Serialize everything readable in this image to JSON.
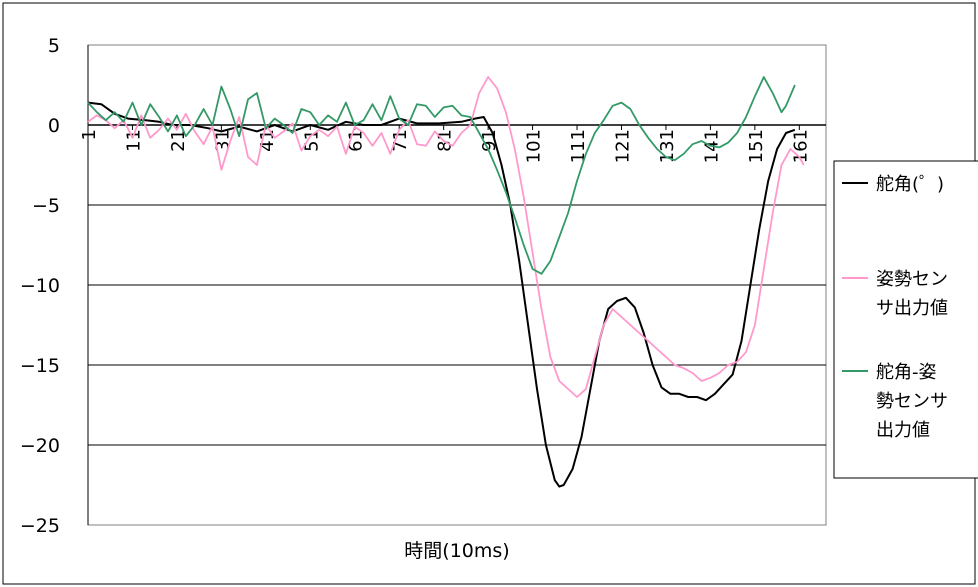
{
  "chart_data": {
    "type": "line",
    "title": "",
    "xlabel": "時間(10ms)",
    "ylabel": "",
    "ylim": [
      -25,
      5
    ],
    "yticks": [
      5,
      0,
      -5,
      -10,
      -15,
      -20,
      -25
    ],
    "ytick_labels": [
      "5",
      "0",
      "−5",
      "−10",
      "−15",
      "−20",
      "−25"
    ],
    "xlim": [
      1,
      167
    ],
    "xticks": [
      1,
      11,
      21,
      31,
      41,
      51,
      61,
      71,
      81,
      91,
      101,
      111,
      121,
      131,
      141,
      151,
      161
    ],
    "xtick_labels": [
      "1",
      "11",
      "21",
      "31",
      "41",
      "51",
      "61",
      "71",
      "81",
      "91",
      "101",
      "111",
      "121",
      "131",
      "141",
      "151",
      "161"
    ],
    "grid": "horizontal",
    "legend_position": "right",
    "series": [
      {
        "name": "舵角(゜)",
        "legend_lines": [
          "舵角(゜)"
        ],
        "color": "#000000",
        "points": [
          [
            1,
            1.4
          ],
          [
            4,
            1.3
          ],
          [
            7,
            0.7
          ],
          [
            10,
            0.4
          ],
          [
            14,
            0.3
          ],
          [
            17,
            0.2
          ],
          [
            20,
            0.0
          ],
          [
            24,
            0.0
          ],
          [
            28,
            -0.2
          ],
          [
            31,
            -0.4
          ],
          [
            35,
            -0.1
          ],
          [
            39,
            -0.4
          ],
          [
            43,
            0.0
          ],
          [
            47,
            -0.4
          ],
          [
            51,
            0.0
          ],
          [
            55,
            -0.3
          ],
          [
            59,
            0.2
          ],
          [
            63,
            0.0
          ],
          [
            67,
            0.0
          ],
          [
            71,
            0.4
          ],
          [
            75,
            0.1
          ],
          [
            80,
            0.1
          ],
          [
            85,
            0.2
          ],
          [
            88,
            0.4
          ],
          [
            90,
            0.5
          ],
          [
            92,
            -0.5
          ],
          [
            94,
            -2.5
          ],
          [
            96,
            -5.0
          ],
          [
            98,
            -8.5
          ],
          [
            100,
            -12.5
          ],
          [
            102,
            -16.5
          ],
          [
            104,
            -20.0
          ],
          [
            106,
            -22.2
          ],
          [
            107,
            -22.6
          ],
          [
            108,
            -22.5
          ],
          [
            110,
            -21.5
          ],
          [
            112,
            -19.5
          ],
          [
            114,
            -16.5
          ],
          [
            116,
            -13.5
          ],
          [
            118,
            -11.5
          ],
          [
            120,
            -11.0
          ],
          [
            122,
            -10.8
          ],
          [
            124,
            -11.4
          ],
          [
            126,
            -13.0
          ],
          [
            128,
            -15.0
          ],
          [
            130,
            -16.4
          ],
          [
            132,
            -16.8
          ],
          [
            134,
            -16.8
          ],
          [
            136,
            -17.0
          ],
          [
            138,
            -17.0
          ],
          [
            140,
            -17.2
          ],
          [
            142,
            -16.8
          ],
          [
            144,
            -16.2
          ],
          [
            146,
            -15.6
          ],
          [
            148,
            -13.5
          ],
          [
            150,
            -10.0
          ],
          [
            152,
            -6.5
          ],
          [
            154,
            -3.5
          ],
          [
            156,
            -1.5
          ],
          [
            158,
            -0.5
          ],
          [
            160,
            -0.3
          ]
        ]
      },
      {
        "name": "姿勢センサ出力値",
        "legend_lines": [
          "姿勢セン",
          "サ出力値"
        ],
        "color": "#ff99cc",
        "points": [
          [
            1,
            0.2
          ],
          [
            3,
            0.6
          ],
          [
            5,
            0.3
          ],
          [
            7,
            -0.2
          ],
          [
            9,
            0.3
          ],
          [
            11,
            -0.8
          ],
          [
            13,
            0.6
          ],
          [
            15,
            -0.8
          ],
          [
            17,
            -0.3
          ],
          [
            19,
            0.4
          ],
          [
            21,
            -0.3
          ],
          [
            23,
            0.7
          ],
          [
            25,
            -0.4
          ],
          [
            27,
            -1.2
          ],
          [
            29,
            -0.1
          ],
          [
            31,
            -2.8
          ],
          [
            33,
            -1.0
          ],
          [
            35,
            0.5
          ],
          [
            37,
            -2.0
          ],
          [
            39,
            -2.5
          ],
          [
            41,
            0.0
          ],
          [
            43,
            -0.8
          ],
          [
            45,
            -0.4
          ],
          [
            47,
            0.1
          ],
          [
            49,
            -1.6
          ],
          [
            51,
            -0.7
          ],
          [
            53,
            -0.3
          ],
          [
            55,
            -0.7
          ],
          [
            57,
            -0.1
          ],
          [
            59,
            -1.8
          ],
          [
            61,
            -0.1
          ],
          [
            63,
            -0.5
          ],
          [
            65,
            -1.3
          ],
          [
            67,
            -0.5
          ],
          [
            69,
            -1.8
          ],
          [
            71,
            -0.3
          ],
          [
            73,
            0.3
          ],
          [
            75,
            -1.2
          ],
          [
            77,
            -1.3
          ],
          [
            79,
            -0.4
          ],
          [
            81,
            -1.0
          ],
          [
            83,
            -1.3
          ],
          [
            85,
            -0.5
          ],
          [
            87,
            0.0
          ],
          [
            89,
            2.0
          ],
          [
            91,
            3.0
          ],
          [
            93,
            2.3
          ],
          [
            95,
            0.8
          ],
          [
            97,
            -1.5
          ],
          [
            99,
            -4.5
          ],
          [
            101,
            -8.0
          ],
          [
            103,
            -11.5
          ],
          [
            105,
            -14.5
          ],
          [
            107,
            -16.0
          ],
          [
            109,
            -16.5
          ],
          [
            111,
            -17.0
          ],
          [
            113,
            -16.5
          ],
          [
            115,
            -14.5
          ],
          [
            117,
            -12.5
          ],
          [
            119,
            -11.5
          ],
          [
            121,
            -12.0
          ],
          [
            123,
            -12.5
          ],
          [
            125,
            -13.0
          ],
          [
            127,
            -13.5
          ],
          [
            129,
            -14.0
          ],
          [
            131,
            -14.5
          ],
          [
            133,
            -15.0
          ],
          [
            135,
            -15.2
          ],
          [
            137,
            -15.5
          ],
          [
            139,
            -16.0
          ],
          [
            141,
            -15.8
          ],
          [
            143,
            -15.5
          ],
          [
            145,
            -15.0
          ],
          [
            147,
            -14.8
          ],
          [
            149,
            -14.2
          ],
          [
            151,
            -12.5
          ],
          [
            153,
            -9.0
          ],
          [
            155,
            -5.5
          ],
          [
            157,
            -2.5
          ],
          [
            159,
            -1.5
          ],
          [
            161,
            -2.0
          ],
          [
            162,
            -2.5
          ]
        ]
      },
      {
        "name": "舵角-姿勢センサ出力値",
        "legend_lines": [
          "舵角-姿",
          "勢センサ",
          "出力値"
        ],
        "color": "#339966",
        "points": [
          [
            1,
            1.4
          ],
          [
            3,
            0.8
          ],
          [
            5,
            0.3
          ],
          [
            7,
            0.8
          ],
          [
            9,
            0.2
          ],
          [
            11,
            1.4
          ],
          [
            13,
            0.0
          ],
          [
            15,
            1.3
          ],
          [
            17,
            0.5
          ],
          [
            19,
            -0.4
          ],
          [
            21,
            0.6
          ],
          [
            23,
            -0.7
          ],
          [
            25,
            0.0
          ],
          [
            27,
            1.0
          ],
          [
            29,
            0.0
          ],
          [
            31,
            2.4
          ],
          [
            33,
            1.0
          ],
          [
            35,
            -0.7
          ],
          [
            37,
            1.6
          ],
          [
            39,
            2.0
          ],
          [
            41,
            -0.2
          ],
          [
            43,
            0.4
          ],
          [
            45,
            0.0
          ],
          [
            47,
            -0.5
          ],
          [
            49,
            1.0
          ],
          [
            51,
            0.8
          ],
          [
            53,
            0.0
          ],
          [
            55,
            0.6
          ],
          [
            57,
            0.2
          ],
          [
            59,
            1.4
          ],
          [
            61,
            0.0
          ],
          [
            63,
            0.3
          ],
          [
            65,
            1.3
          ],
          [
            67,
            0.3
          ],
          [
            69,
            1.8
          ],
          [
            71,
            0.4
          ],
          [
            73,
            0.0
          ],
          [
            75,
            1.3
          ],
          [
            77,
            1.2
          ],
          [
            79,
            0.5
          ],
          [
            81,
            1.1
          ],
          [
            83,
            1.2
          ],
          [
            85,
            0.6
          ],
          [
            87,
            0.5
          ],
          [
            89,
            -0.5
          ],
          [
            91,
            -1.5
          ],
          [
            93,
            -2.8
          ],
          [
            95,
            -4.2
          ],
          [
            97,
            -5.8
          ],
          [
            99,
            -7.5
          ],
          [
            101,
            -9.0
          ],
          [
            103,
            -9.3
          ],
          [
            105,
            -8.5
          ],
          [
            107,
            -7.0
          ],
          [
            109,
            -5.5
          ],
          [
            111,
            -3.5
          ],
          [
            113,
            -1.8
          ],
          [
            115,
            -0.5
          ],
          [
            117,
            0.3
          ],
          [
            119,
            1.2
          ],
          [
            121,
            1.4
          ],
          [
            123,
            1.0
          ],
          [
            125,
            0.0
          ],
          [
            127,
            -0.8
          ],
          [
            129,
            -1.5
          ],
          [
            131,
            -2.0
          ],
          [
            133,
            -2.2
          ],
          [
            135,
            -1.8
          ],
          [
            137,
            -1.2
          ],
          [
            139,
            -1.0
          ],
          [
            141,
            -1.3
          ],
          [
            143,
            -1.4
          ],
          [
            145,
            -1.1
          ],
          [
            147,
            -0.5
          ],
          [
            149,
            0.5
          ],
          [
            151,
            1.8
          ],
          [
            153,
            3.0
          ],
          [
            155,
            2.0
          ],
          [
            157,
            0.8
          ],
          [
            158,
            1.2
          ],
          [
            160,
            2.5
          ]
        ]
      }
    ]
  }
}
